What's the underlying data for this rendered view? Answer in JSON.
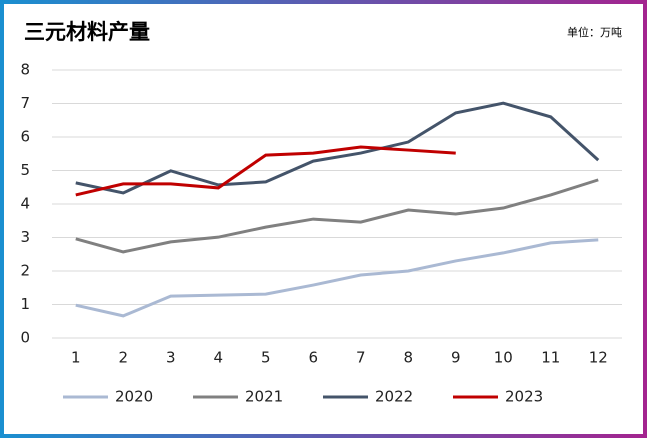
{
  "chart_data": {
    "type": "line",
    "title": "三元材料产量",
    "unit": "单位：万吨",
    "categories": [
      "1",
      "2",
      "3",
      "4",
      "5",
      "6",
      "7",
      "8",
      "9",
      "10",
      "11",
      "12"
    ],
    "series": [
      {
        "name": "2020",
        "color": "#aab9d3",
        "values": [
          0.98,
          0.66,
          1.25,
          1.28,
          1.31,
          1.58,
          1.88,
          2.0,
          2.3,
          2.54,
          2.84,
          2.93
        ]
      },
      {
        "name": "2021",
        "color": "#808080",
        "values": [
          2.96,
          2.57,
          2.87,
          3.01,
          3.31,
          3.55,
          3.46,
          3.82,
          3.7,
          3.88,
          4.27,
          4.72
        ]
      },
      {
        "name": "2022",
        "color": "#44546a",
        "values": [
          4.63,
          4.33,
          4.99,
          4.57,
          4.66,
          5.28,
          5.52,
          5.85,
          6.72,
          7.01,
          6.6,
          5.31
        ]
      },
      {
        "name": "2023",
        "color": "#c00000",
        "values": [
          4.27,
          4.6,
          4.6,
          4.48,
          5.46,
          5.52,
          5.7,
          5.61,
          5.52,
          null,
          null,
          null
        ]
      }
    ],
    "ylim": [
      0,
      8
    ],
    "yticks": [
      0,
      1,
      2,
      3,
      4,
      5,
      6,
      7,
      8
    ],
    "grid": true,
    "legend": "bottom"
  }
}
